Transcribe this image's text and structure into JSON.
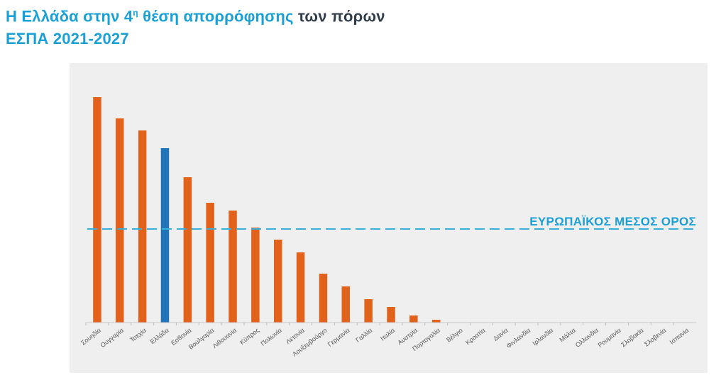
{
  "title": {
    "line1_part1": "Η Ελλάδα στην 4",
    "line1_sup": "η",
    "line1_part2": " θέση απορρόφησης",
    "line1_part3": " των πόρων",
    "line2": "ΕΣΠΑ 2021-2027"
  },
  "colors": {
    "bar": "#e2621b",
    "highlight": "#1f74b9",
    "average_line": "#3aaed8",
    "title_blue": "#1a9fd6"
  },
  "chart_data": {
    "type": "bar",
    "categories": [
      "Σουηδία",
      "Ουγγαρία",
      "Τσεχία",
      "Ελλάδα",
      "Εσθονία",
      "Βουλγαρία",
      "Λιθουανία",
      "Κύπρος",
      "Πολωνία",
      "Λετονία",
      "Λουξεμβούργο",
      "Γερμανία",
      "Γαλλία",
      "Ιταλία",
      "Αυστρία",
      "Πορτογαλία",
      "Βέλγιο",
      "Κροατία",
      "Δανία",
      "Φινλανδία",
      "Ιρλανδία",
      "Μάλτα",
      "Ολλανδία",
      "Ρουμανία",
      "Σλοβακία",
      "Σλοβενία",
      "Ισπανία"
    ],
    "values": [
      318,
      288,
      271,
      246,
      205,
      169,
      158,
      134,
      117,
      99,
      69,
      51,
      33,
      22,
      10,
      4,
      0,
      0,
      0,
      0,
      0,
      0,
      0,
      0,
      0,
      0,
      0
    ],
    "highlight_category": "Ελλάδα",
    "average_value": 132,
    "average_label": "ΕΥΡΩΠΑΪΚΟΣ ΜΕΣΟΣ ΟΡΟΣ",
    "ylim": [
      0,
      330
    ],
    "grid": false,
    "legend": false,
    "title": "",
    "xlabel": "",
    "ylabel": ""
  }
}
